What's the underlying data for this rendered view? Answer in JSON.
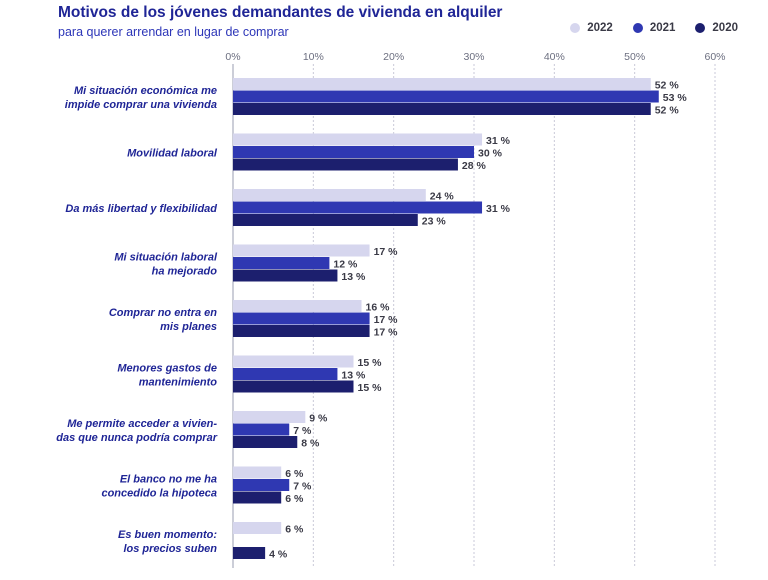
{
  "chart_data": {
    "type": "bar",
    "orientation": "horizontal",
    "title": "Motivos de los jóvenes demandantes de vivienda en alquiler",
    "subtitle": "para querer arrendar en lugar de comprar",
    "xlim": [
      0,
      60
    ],
    "ticks": [
      0,
      10,
      20,
      30,
      40,
      50,
      60
    ],
    "tick_suffix": "%",
    "value_suffix": " %",
    "grid": true,
    "legend_position": "top-right",
    "categories": [
      [
        "Mi situación económica me",
        "impide comprar una vivienda"
      ],
      [
        "Movilidad laboral"
      ],
      [
        "Da más libertad y flexibilidad"
      ],
      [
        "Mi situación laboral",
        "ha mejorado"
      ],
      [
        "Comprar no entra en",
        "mis planes"
      ],
      [
        "Menores gastos de",
        "mantenimiento"
      ],
      [
        "Me permite acceder a vivien-",
        "das que nunca podría comprar"
      ],
      [
        "El banco no me ha",
        "concedido la hipoteca"
      ],
      [
        "Es buen momento:",
        "los precios suben"
      ]
    ],
    "series": [
      {
        "name": "2022",
        "color": "#d6d6ee",
        "values": [
          52,
          31,
          24,
          17,
          16,
          15,
          9,
          6,
          6
        ]
      },
      {
        "name": "2021",
        "color": "#2f38b2",
        "values": [
          53,
          30,
          31,
          12,
          17,
          13,
          7,
          7,
          null
        ]
      },
      {
        "name": "2020",
        "color": "#1c1f6e",
        "values": [
          52,
          28,
          23,
          13,
          17,
          15,
          8,
          6,
          4
        ]
      }
    ]
  }
}
